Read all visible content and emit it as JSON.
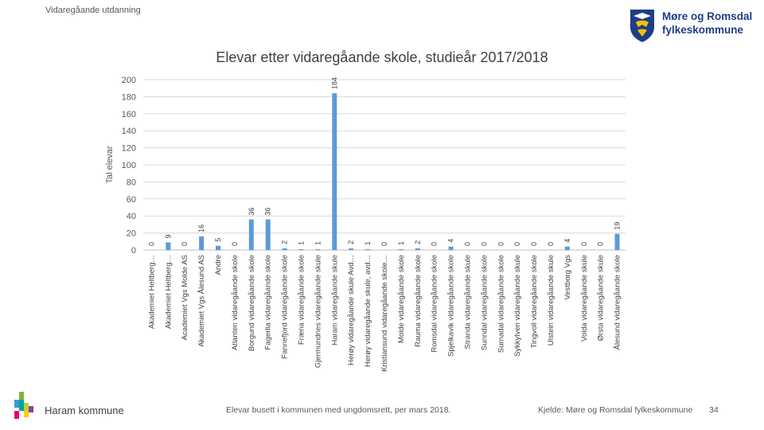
{
  "header": {
    "section": "Vidaregåande utdanning",
    "logo_line1": "Møre og Romsdal",
    "logo_line2": "fylkeskommune"
  },
  "footer": {
    "municipality": "Haram kommune",
    "note": "Elevar busett i kommunen med ungdomsrett, per mars 2018.",
    "source": "Kjelde: Møre og Romsdal fylkeskommune",
    "page": "34"
  },
  "colors": {
    "bar": "#5b9bd5",
    "logo": "#1f3c88"
  },
  "chart_data": {
    "type": "bar",
    "title": "Elevar etter vidaregåande skole, studieår 2017/2018",
    "ylabel": "Tal elevar",
    "xlabel": "",
    "ylim": [
      0,
      200
    ],
    "yticks": [
      0,
      20,
      40,
      60,
      80,
      100,
      120,
      140,
      160,
      180,
      200
    ],
    "grid": true,
    "legend": "none",
    "categories": [
      "Akademiet Heltberg…",
      "Akademiet Heltberg…",
      "Academiet Vgs Molde AS",
      "Akademiet Vgs Ålesund AS",
      "Andre",
      "Atlanten vidaregåande skole",
      "Borgund vidaregåande skole",
      "Fagerlia vidaregåande skole",
      "Fannefjord vidaregåande skole",
      "Fræna vidaregåande skole",
      "Gjermundnes vidaregåande skule",
      "Haram vidaregåande skule",
      "Herøy vidaregåande skule Avd…",
      "Herøy vidaregåande skule, avd…",
      "Kristiansund vidaregåande skole…",
      "Molde vidaregåande skole",
      "Rauma vidaregåande skole",
      "Romsdal vidaregåande skole",
      "Spjelkavik vidaregåande skole",
      "Stranda vidaregåande skule",
      "Sunndal vidaregåande skole",
      "Surnadal vidaregåande skole",
      "Sykkylven vidaregåande skule",
      "Tingvoll vidaregåande skole",
      "Ulstein vidaregåande skule",
      "Vestborg Vgs",
      "Volda vidaregåande skule",
      "Ørsta vidaregåande skule",
      "Ålesund vidaregåande skole"
    ],
    "values": [
      0,
      9,
      0,
      16,
      5,
      0,
      36,
      36,
      2,
      1,
      1,
      184,
      2,
      1,
      0,
      1,
      2,
      0,
      4,
      0,
      0,
      0,
      0,
      0,
      0,
      4,
      0,
      0,
      19
    ]
  }
}
